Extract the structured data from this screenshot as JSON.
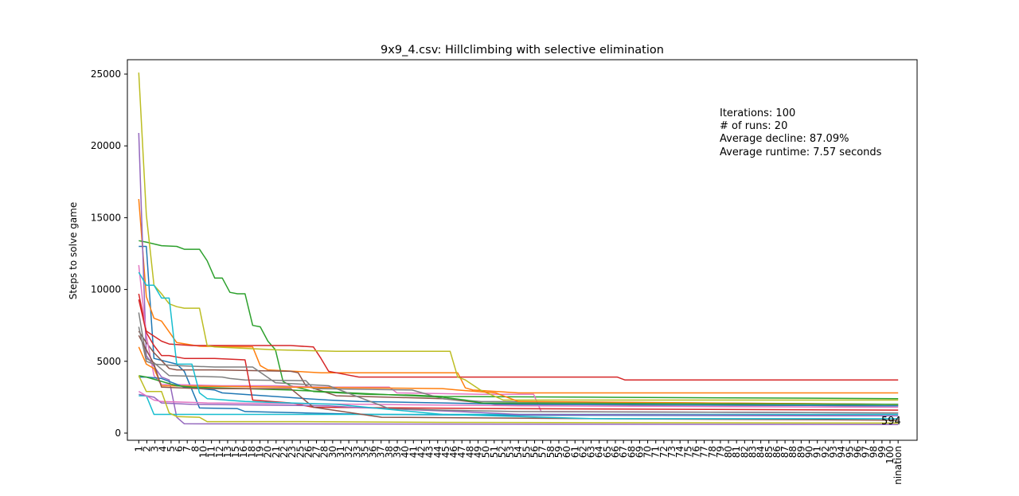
{
  "chart_data": {
    "type": "line",
    "title": "9x9_4.csv: Hillclimbing with selective elimination",
    "xlabel": "",
    "ylabel": "Steps to solve game",
    "ylim": [
      -500,
      26000
    ],
    "yticks": [
      0,
      5000,
      10000,
      15000,
      20000,
      25000
    ],
    "xlim": [
      -1.5,
      102.5
    ],
    "x_tick_labels": [
      "1",
      "2",
      "3",
      "4",
      "5",
      "6",
      "7",
      "8",
      "10",
      "11",
      "12",
      "13",
      "15",
      "16",
      "18",
      "19",
      "20",
      "21",
      "22",
      "23",
      "25",
      "26",
      "27",
      "28",
      "30",
      "31",
      "32",
      "33",
      "35",
      "36",
      "37",
      "38",
      "39",
      "40",
      "41",
      "42",
      "43",
      "44",
      "45",
      "46",
      "47",
      "48",
      "49",
      "50",
      "51",
      "52",
      "53",
      "54",
      "55",
      "56",
      "57",
      "58",
      "59",
      "60",
      "61",
      "62",
      "63",
      "64",
      "65",
      "66",
      "67",
      "68",
      "69",
      "70",
      "71",
      "72",
      "73",
      "74",
      "75",
      "76",
      "77",
      "78",
      "79",
      "80",
      "81",
      "82",
      "83",
      "84",
      "85",
      "86",
      "87",
      "88",
      "89",
      "90",
      "91",
      "92",
      "93",
      "94",
      "95",
      "96",
      "97",
      "98",
      "99",
      "100",
      "nination"
    ],
    "grid": false,
    "legend": "none",
    "annotations": {
      "info": [
        "Iterations: 100",
        "# of runs: 20",
        "Average decline: 87.09%",
        "Average runtime: 7.57 seconds"
      ],
      "end_label": "594"
    },
    "series": [
      {
        "color": "#1f77b4",
        "points": [
          [
            0,
            13000
          ],
          [
            1,
            13000
          ],
          [
            2,
            5200
          ],
          [
            5,
            4800
          ],
          [
            6,
            4300
          ],
          [
            8,
            1750
          ],
          [
            13,
            1700
          ],
          [
            14,
            1500
          ],
          [
            22,
            1400
          ],
          [
            30,
            1300
          ],
          [
            45,
            1250
          ],
          [
            100,
            1200
          ]
        ]
      },
      {
        "color": "#ff7f0e",
        "points": [
          [
            0,
            16300
          ],
          [
            1,
            9500
          ],
          [
            2,
            8000
          ],
          [
            3,
            7800
          ],
          [
            5,
            6300
          ],
          [
            8,
            6050
          ],
          [
            15,
            6000
          ],
          [
            16,
            4700
          ],
          [
            17,
            4400
          ],
          [
            24,
            4200
          ],
          [
            42,
            4200
          ],
          [
            43,
            3150
          ],
          [
            44,
            3000
          ],
          [
            50,
            2800
          ],
          [
            100,
            2800
          ]
        ]
      },
      {
        "color": "#2ca02c",
        "points": [
          [
            0,
            13400
          ],
          [
            1,
            13300
          ],
          [
            3,
            13050
          ],
          [
            5,
            13000
          ],
          [
            6,
            12800
          ],
          [
            8,
            12800
          ],
          [
            9,
            12000
          ],
          [
            10,
            10800
          ],
          [
            11,
            10800
          ],
          [
            12,
            9800
          ],
          [
            13,
            9700
          ],
          [
            14,
            9700
          ],
          [
            15,
            7500
          ],
          [
            16,
            7400
          ],
          [
            17,
            6400
          ],
          [
            18,
            5800
          ],
          [
            19,
            3600
          ],
          [
            20,
            3300
          ],
          [
            23,
            2900
          ],
          [
            30,
            2700
          ],
          [
            36,
            2650
          ],
          [
            40,
            2550
          ],
          [
            60,
            2500
          ],
          [
            100,
            2400
          ]
        ]
      },
      {
        "color": "#d62728",
        "points": [
          [
            0,
            9700
          ],
          [
            1,
            7100
          ],
          [
            3,
            6400
          ],
          [
            4,
            6200
          ],
          [
            7,
            6100
          ],
          [
            20,
            6100
          ],
          [
            23,
            6000
          ],
          [
            24,
            5200
          ],
          [
            25,
            4300
          ],
          [
            26,
            4200
          ],
          [
            29,
            3900
          ],
          [
            63,
            3900
          ],
          [
            64,
            3700
          ],
          [
            100,
            3700
          ]
        ]
      },
      {
        "color": "#9467bd",
        "points": [
          [
            0,
            20900
          ],
          [
            1,
            5400
          ],
          [
            3,
            3900
          ],
          [
            4,
            3700
          ],
          [
            5,
            1100
          ],
          [
            6,
            650
          ],
          [
            100,
            594
          ]
        ]
      },
      {
        "color": "#8c564b",
        "points": [
          [
            0,
            7100
          ],
          [
            1,
            6300
          ],
          [
            2,
            5600
          ],
          [
            4,
            4500
          ],
          [
            5,
            4400
          ],
          [
            10,
            4400
          ],
          [
            20,
            4300
          ],
          [
            21,
            4200
          ],
          [
            22,
            3300
          ],
          [
            26,
            2600
          ],
          [
            40,
            2400
          ],
          [
            47,
            2000
          ],
          [
            100,
            1900
          ]
        ]
      },
      {
        "color": "#e377c2",
        "points": [
          [
            0,
            11700
          ],
          [
            1,
            6800
          ],
          [
            2,
            4000
          ],
          [
            3,
            3400
          ],
          [
            11,
            3300
          ],
          [
            18,
            3300
          ],
          [
            24,
            3200
          ],
          [
            33,
            3200
          ],
          [
            34,
            2800
          ],
          [
            45,
            2700
          ],
          [
            52,
            2700
          ],
          [
            53,
            1500
          ],
          [
            100,
            1400
          ]
        ]
      },
      {
        "color": "#7f7f7f",
        "points": [
          [
            0,
            8400
          ],
          [
            1,
            5200
          ],
          [
            2,
            4900
          ],
          [
            4,
            4000
          ],
          [
            11,
            3900
          ],
          [
            12,
            3800
          ],
          [
            14,
            3700
          ],
          [
            22,
            3650
          ],
          [
            23,
            3100
          ],
          [
            36,
            3000
          ],
          [
            40,
            2400
          ],
          [
            45,
            2200
          ],
          [
            100,
            2000
          ]
        ]
      },
      {
        "color": "#bcbd22",
        "points": [
          [
            0,
            25100
          ],
          [
            1,
            15200
          ],
          [
            2,
            10300
          ],
          [
            3,
            9700
          ],
          [
            4,
            9000
          ],
          [
            5,
            8800
          ],
          [
            6,
            8700
          ],
          [
            8,
            8700
          ],
          [
            9,
            6100
          ],
          [
            10,
            6000
          ],
          [
            18,
            5800
          ],
          [
            26,
            5700
          ],
          [
            41,
            5700
          ],
          [
            42,
            3900
          ],
          [
            43,
            3700
          ],
          [
            45,
            3000
          ],
          [
            48,
            2300
          ],
          [
            100,
            2300
          ]
        ]
      },
      {
        "color": "#17becf",
        "points": [
          [
            0,
            2600
          ],
          [
            1,
            2600
          ],
          [
            2,
            1300
          ],
          [
            3,
            1300
          ],
          [
            6,
            1300
          ],
          [
            100,
            1300
          ]
        ]
      },
      {
        "color": "#1f77b4",
        "points": [
          [
            0,
            3900
          ],
          [
            1,
            3900
          ],
          [
            3,
            3800
          ],
          [
            6,
            3200
          ],
          [
            10,
            3000
          ],
          [
            11,
            2800
          ],
          [
            22,
            2400
          ],
          [
            25,
            2300
          ],
          [
            29,
            2200
          ],
          [
            40,
            2100
          ],
          [
            50,
            2000
          ],
          [
            100,
            1900
          ]
        ]
      },
      {
        "color": "#ff7f0e",
        "points": [
          [
            0,
            6000
          ],
          [
            1,
            4800
          ],
          [
            2,
            4500
          ],
          [
            3,
            3300
          ],
          [
            20,
            3200
          ],
          [
            40,
            3100
          ],
          [
            42,
            3000
          ],
          [
            47,
            2800
          ],
          [
            50,
            2200
          ],
          [
            100,
            2000
          ]
        ]
      },
      {
        "color": "#2ca02c",
        "points": [
          [
            0,
            4000
          ],
          [
            1,
            3900
          ],
          [
            5,
            3300
          ],
          [
            7,
            3200
          ],
          [
            20,
            3000
          ],
          [
            40,
            2500
          ],
          [
            43,
            2300
          ],
          [
            45,
            2100
          ],
          [
            100,
            2000
          ]
        ]
      },
      {
        "color": "#d62728",
        "points": [
          [
            0,
            9300
          ],
          [
            1,
            7000
          ],
          [
            2,
            6100
          ],
          [
            3,
            5400
          ],
          [
            4,
            5400
          ],
          [
            6,
            5200
          ],
          [
            10,
            5200
          ],
          [
            14,
            5100
          ],
          [
            15,
            2300
          ],
          [
            20,
            2100
          ],
          [
            23,
            1800
          ],
          [
            48,
            1700
          ],
          [
            100,
            1600
          ]
        ]
      },
      {
        "color": "#9467bd",
        "points": [
          [
            0,
            2700
          ],
          [
            1,
            2600
          ],
          [
            2,
            2500
          ],
          [
            3,
            2100
          ],
          [
            7,
            2000
          ],
          [
            25,
            1900
          ],
          [
            28,
            1800
          ],
          [
            42,
            1500
          ],
          [
            50,
            1300
          ],
          [
            100,
            1200
          ]
        ]
      },
      {
        "color": "#8c564b",
        "points": [
          [
            0,
            6800
          ],
          [
            1,
            5800
          ],
          [
            2,
            4800
          ],
          [
            3,
            3200
          ],
          [
            8,
            3100
          ],
          [
            20,
            3100
          ],
          [
            23,
            1800
          ],
          [
            32,
            1100
          ],
          [
            60,
            1000
          ],
          [
            100,
            900
          ]
        ]
      },
      {
        "color": "#e377c2",
        "points": [
          [
            0,
            2900
          ],
          [
            1,
            2600
          ],
          [
            2,
            2300
          ],
          [
            3,
            2200
          ],
          [
            9,
            2100
          ],
          [
            20,
            2050
          ],
          [
            30,
            2000
          ],
          [
            50,
            1900
          ],
          [
            100,
            1800
          ]
        ]
      },
      {
        "color": "#7f7f7f",
        "points": [
          [
            0,
            7400
          ],
          [
            1,
            5000
          ],
          [
            2,
            4800
          ],
          [
            5,
            4700
          ],
          [
            10,
            4600
          ],
          [
            15,
            4600
          ],
          [
            18,
            3500
          ],
          [
            25,
            3300
          ],
          [
            33,
            1700
          ],
          [
            40,
            1600
          ],
          [
            50,
            1500
          ],
          [
            100,
            1400
          ]
        ]
      },
      {
        "color": "#bcbd22",
        "points": [
          [
            0,
            4000
          ],
          [
            1,
            2900
          ],
          [
            3,
            2900
          ],
          [
            4,
            1400
          ],
          [
            5,
            1150
          ],
          [
            8,
            1100
          ],
          [
            9,
            800
          ],
          [
            20,
            800
          ],
          [
            40,
            750
          ],
          [
            100,
            700
          ]
        ]
      },
      {
        "color": "#17becf",
        "points": [
          [
            0,
            11200
          ],
          [
            1,
            10300
          ],
          [
            2,
            10300
          ],
          [
            3,
            9400
          ],
          [
            4,
            9400
          ],
          [
            5,
            4800
          ],
          [
            7,
            4800
          ],
          [
            8,
            2800
          ],
          [
            9,
            2400
          ],
          [
            14,
            2200
          ],
          [
            20,
            2100
          ],
          [
            26,
            2000
          ],
          [
            40,
            1300
          ],
          [
            60,
            1000
          ],
          [
            100,
            1000
          ]
        ]
      }
    ]
  }
}
